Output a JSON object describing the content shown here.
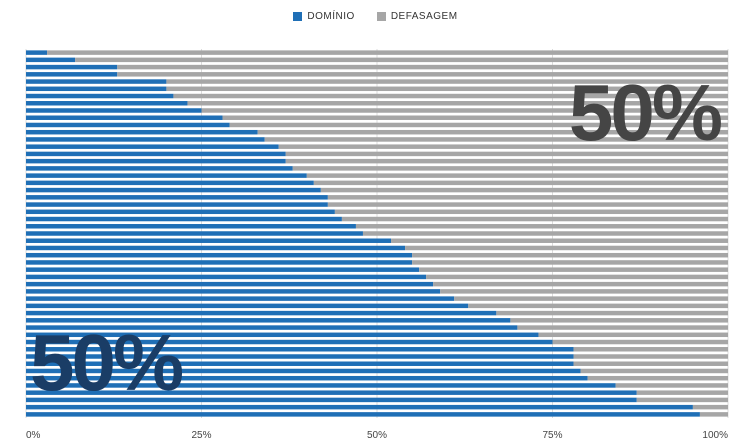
{
  "legend": [
    {
      "label": "DOMÍNIO",
      "color": "#1f6fb6"
    },
    {
      "label": "DEFASAGEM",
      "color": "#a6a6a6"
    }
  ],
  "annotations": {
    "top_right": "50%",
    "bottom_left": "50%"
  },
  "chart_data": {
    "type": "bar",
    "orientation": "horizontal",
    "stacked": true,
    "percent_stacked": true,
    "xlim": [
      0,
      100
    ],
    "x_ticks": [
      "0%",
      "25%",
      "50%",
      "75%",
      "100%"
    ],
    "grid": true,
    "legend_position": "top",
    "series": [
      {
        "name": "DOMÍNIO",
        "color": "#1f6fb6",
        "values": [
          3,
          7,
          13,
          13,
          20,
          20,
          21,
          23,
          25,
          28,
          29,
          33,
          34,
          36,
          37,
          37,
          38,
          40,
          41,
          42,
          43,
          43,
          44,
          45,
          47,
          48,
          52,
          54,
          55,
          55,
          56,
          57,
          58,
          59,
          61,
          63,
          67,
          69,
          70,
          73,
          75,
          78,
          78,
          78,
          79,
          80,
          84,
          87,
          87,
          95,
          96
        ]
      },
      {
        "name": "DEFASAGEM",
        "color": "#a6a6a6",
        "values": [
          97,
          93,
          87,
          87,
          80,
          80,
          79,
          77,
          75,
          72,
          71,
          67,
          66,
          64,
          63,
          63,
          62,
          60,
          59,
          58,
          57,
          57,
          56,
          55,
          53,
          52,
          48,
          46,
          45,
          45,
          44,
          43,
          42,
          41,
          39,
          37,
          33,
          31,
          30,
          27,
          25,
          22,
          22,
          22,
          21,
          20,
          16,
          13,
          13,
          5,
          4
        ]
      }
    ]
  }
}
